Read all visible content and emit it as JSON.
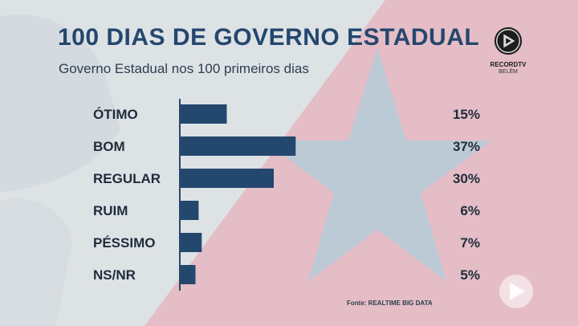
{
  "header": {
    "title": "100 DIAS DE GOVERNO ESTADUAL",
    "subtitle": "Governo Estadual nos 100 primeiros dias"
  },
  "logo": {
    "name": "RECORDTV",
    "city": "BELÉM"
  },
  "source": "Fonte: REALTIME BIG DATA",
  "colors": {
    "bar": "#24476e",
    "title": "#24476e",
    "star": "#b9cad6",
    "pink": "#e6b9c2"
  },
  "chart_data": {
    "type": "bar",
    "orientation": "horizontal",
    "title": "100 DIAS DE GOVERNO ESTADUAL",
    "subtitle": "Governo Estadual nos 100 primeiros dias",
    "categories": [
      "ÓTIMO",
      "BOM",
      "REGULAR",
      "RUIM",
      "PÉSSIMO",
      "NS/NR"
    ],
    "values": [
      15,
      37,
      30,
      6,
      7,
      5
    ],
    "value_labels": [
      "15%",
      "37%",
      "30%",
      "6%",
      "7%",
      "5%"
    ],
    "unit": "%",
    "xlim": [
      0,
      100
    ],
    "grid": false
  }
}
